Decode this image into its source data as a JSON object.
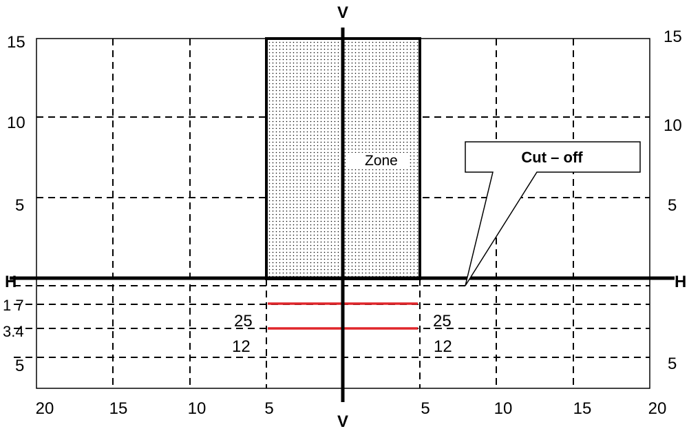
{
  "axes": {
    "vertical_label_top": "V",
    "vertical_label_bottom": "V",
    "horizontal_label_left": "H",
    "horizontal_label_right": "H"
  },
  "left_scale": {
    "top": "15",
    "upper": "10",
    "mid": "5",
    "neg1": "1 7",
    "neg2": "3.4",
    "neg3": "5"
  },
  "right_scale": {
    "top": "15",
    "upper": "10",
    "mid": "5",
    "neg3": "5"
  },
  "bottom_scale": [
    "20",
    "15",
    "10",
    "5",
    "5",
    "10",
    "15",
    "20"
  ],
  "zone": {
    "label": "Zone"
  },
  "cutoff": {
    "label": "Cut – off"
  },
  "measurements": {
    "left_upper": "25",
    "left_lower": "12",
    "right_upper": "25",
    "right_lower": "12"
  },
  "colors": {
    "line": "#000000",
    "red_line": "#e0262b",
    "zone_fill": "#f2f2f2"
  }
}
